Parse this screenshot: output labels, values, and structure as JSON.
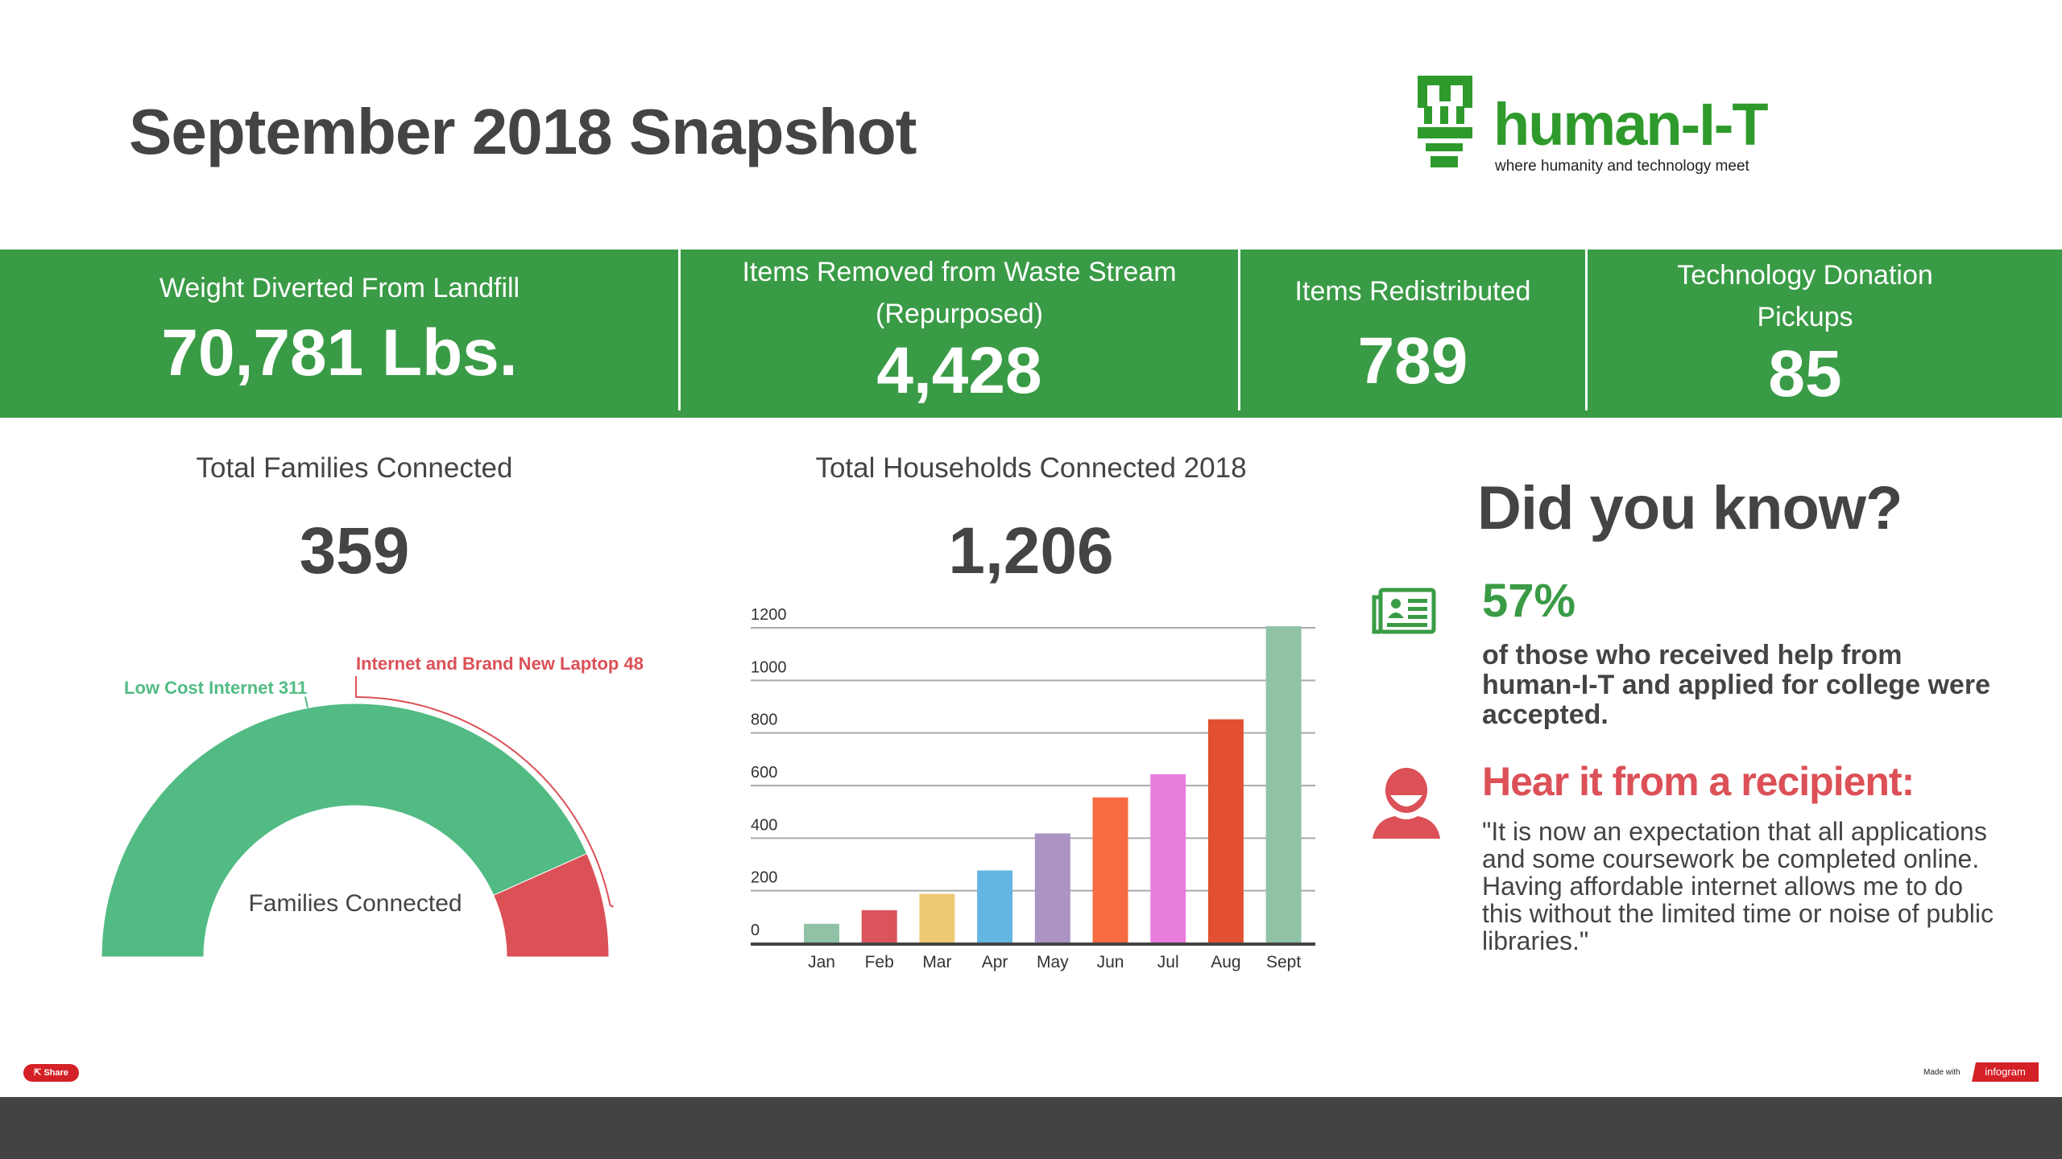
{
  "header": {
    "title": "September 2018 Snapshot"
  },
  "logo": {
    "name": "human-I-T",
    "tagline": "where humanity and technology meet",
    "color": "#2f9a2c"
  },
  "stats": [
    {
      "label_lines": [
        "Weight Diverted From Landfill"
      ],
      "value": "70,781 Lbs."
    },
    {
      "label_lines": [
        "Items Removed from Waste Stream",
        "(Repurposed)"
      ],
      "value": "4,428"
    },
    {
      "label_lines": [
        "Items Redistributed"
      ],
      "value": "789"
    },
    {
      "label_lines": [
        "Technology Donation",
        "Pickups"
      ],
      "value": "85"
    }
  ],
  "families": {
    "title": "Total Families Connected",
    "total": "359",
    "center_label": "Families Connected"
  },
  "households": {
    "title": "Total Households Connected 2018",
    "total": "1,206"
  },
  "did_you_know": {
    "heading": "Did you know?",
    "stat": "57%",
    "stat_text_lines": [
      "of those who received help from",
      "human-I-T and applied for college were",
      "accepted."
    ],
    "stat_icon": "newspaper-profile-icon",
    "quote_heading": "Hear it from a recipient:",
    "quote_icon": "person-icon",
    "quote_lines": [
      "\"It is now an expectation that all applications",
      "and some coursework be completed online.",
      "Having affordable internet allows me to do",
      "this without the limited time or noise of public",
      "libraries.\""
    ]
  },
  "footer": {
    "share_label": "Share",
    "made_with": "Made with",
    "brand": "infogram"
  },
  "colors": {
    "band": "#3a9b46",
    "accent_red": "#dc5057",
    "gauge_green": "#52bb84",
    "footer": "#434343"
  },
  "chart_data": [
    {
      "type": "pie",
      "variant": "semi-donut",
      "categories": [
        "Low Cost Internet",
        "Internet and Brand New Laptop"
      ],
      "values": [
        311,
        48
      ],
      "colors": [
        "#52bb84",
        "#dc5057"
      ],
      "labels": [
        "Low Cost Internet 311",
        "Internet and Brand New Laptop 48"
      ]
    },
    {
      "type": "bar",
      "categories": [
        "Jan",
        "Feb",
        "Mar",
        "Apr",
        "May",
        "Jun",
        "Jul",
        "Aug",
        "Sept"
      ],
      "values": [
        74,
        126,
        188,
        277,
        418,
        555,
        643,
        852,
        1206
      ],
      "colors": [
        "#90c2a6",
        "#dc545b",
        "#eeca72",
        "#64b6e2",
        "#ab93c4",
        "#f86b42",
        "#e97ede",
        "#e25031",
        "#90c2a6"
      ],
      "yticks": [
        0,
        200,
        400,
        600,
        800,
        1000,
        1200
      ],
      "ylim": [
        0,
        1200
      ],
      "grid": true
    }
  ]
}
